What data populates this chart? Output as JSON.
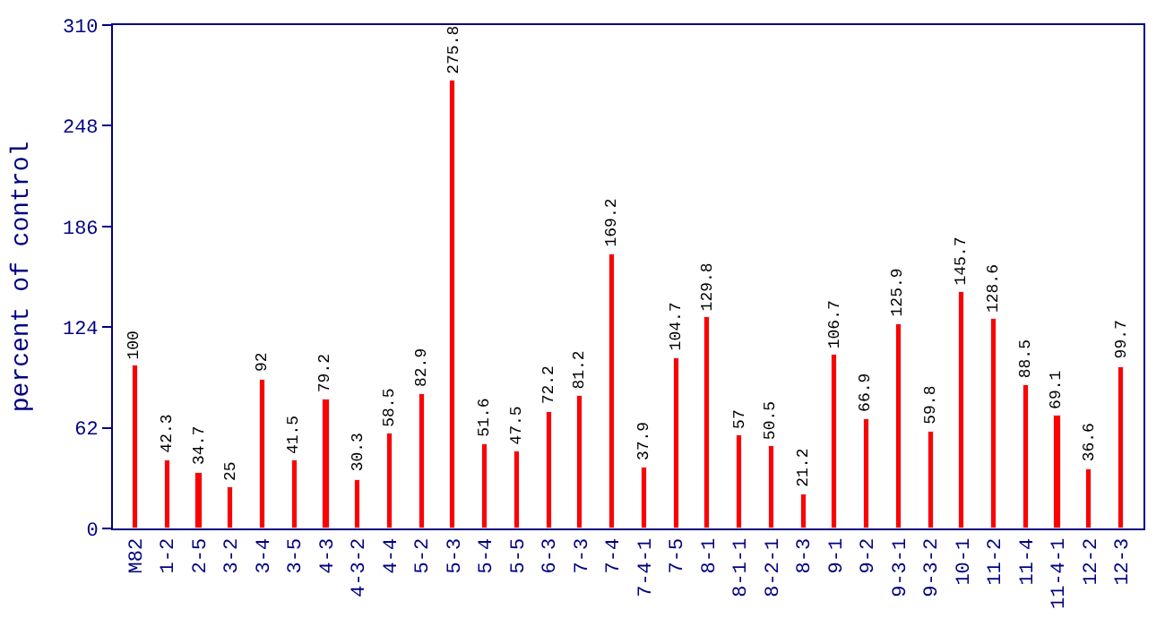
{
  "chart_data": {
    "type": "bar",
    "ylabel": "percent of control",
    "categories": [
      "M82",
      "1-2",
      "2-5",
      "3-2",
      "3-4",
      "3-5",
      "4-3",
      "4-3-2",
      "4-4",
      "5-2",
      "5-3",
      "5-4",
      "5-5",
      "6-3",
      "7-3",
      "7-4",
      "7-4-1",
      "7-5",
      "8-1",
      "8-1-1",
      "8-2-1",
      "8-3",
      "9-1",
      "9-2",
      "9-3-1",
      "9-3-2",
      "10-1",
      "11-2",
      "11-4",
      "11-4-1",
      "12-2",
      "12-3"
    ],
    "values": [
      100,
      42.3,
      34.7,
      25,
      92,
      41.5,
      79.2,
      30.3,
      58.5,
      82.9,
      275.8,
      51.6,
      47.5,
      72.2,
      81.2,
      169.2,
      37.9,
      104.7,
      129.8,
      57,
      50.5,
      21.2,
      106.7,
      66.9,
      125.9,
      59.8,
      145.7,
      128.6,
      88.5,
      69.1,
      36.6,
      99.7
    ],
    "color": "#ff0000",
    "ylim": [
      0,
      310
    ],
    "yticks": [
      0,
      62,
      124,
      186,
      248,
      310
    ],
    "data_labels": true
  }
}
